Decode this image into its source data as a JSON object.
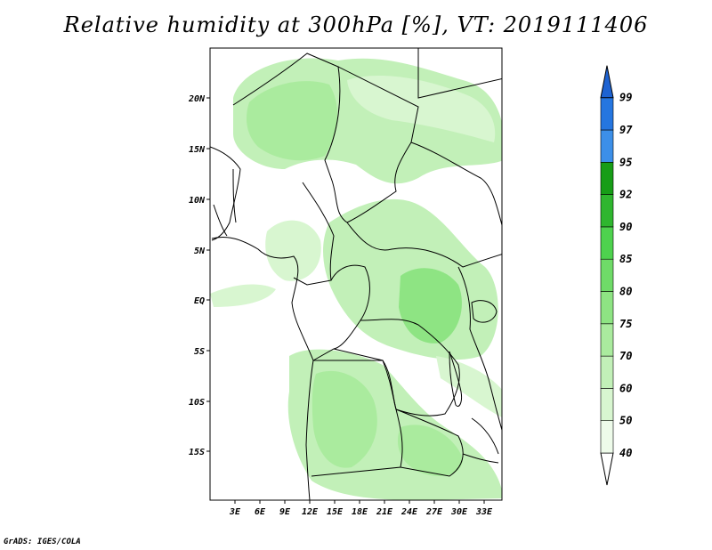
{
  "title": "Relative humidity at 300hPa [%], VT: 2019111406",
  "credit": "GrADS: IGES/COLA",
  "map": {
    "lat_ticks": [
      "20N",
      "15N",
      "10N",
      "5N",
      "EQ",
      "5S",
      "10S",
      "15S"
    ],
    "lon_ticks": [
      "3E",
      "6E",
      "9E",
      "12E",
      "15E",
      "18E",
      "21E",
      "24E",
      "27E",
      "30E",
      "33E"
    ]
  },
  "colorbar": {
    "levels": [
      "40",
      "50",
      "60",
      "70",
      "75",
      "80",
      "85",
      "90",
      "92",
      "95",
      "97",
      "99"
    ],
    "colors": [
      "#eefbea",
      "#d8f6d0",
      "#c2f0b8",
      "#aaeb9e",
      "#8ee483",
      "#6fdb68",
      "#4ed24e",
      "#2fb62f",
      "#179d17",
      "#3c8fe8",
      "#2576e0",
      "#1e63d2"
    ]
  }
}
